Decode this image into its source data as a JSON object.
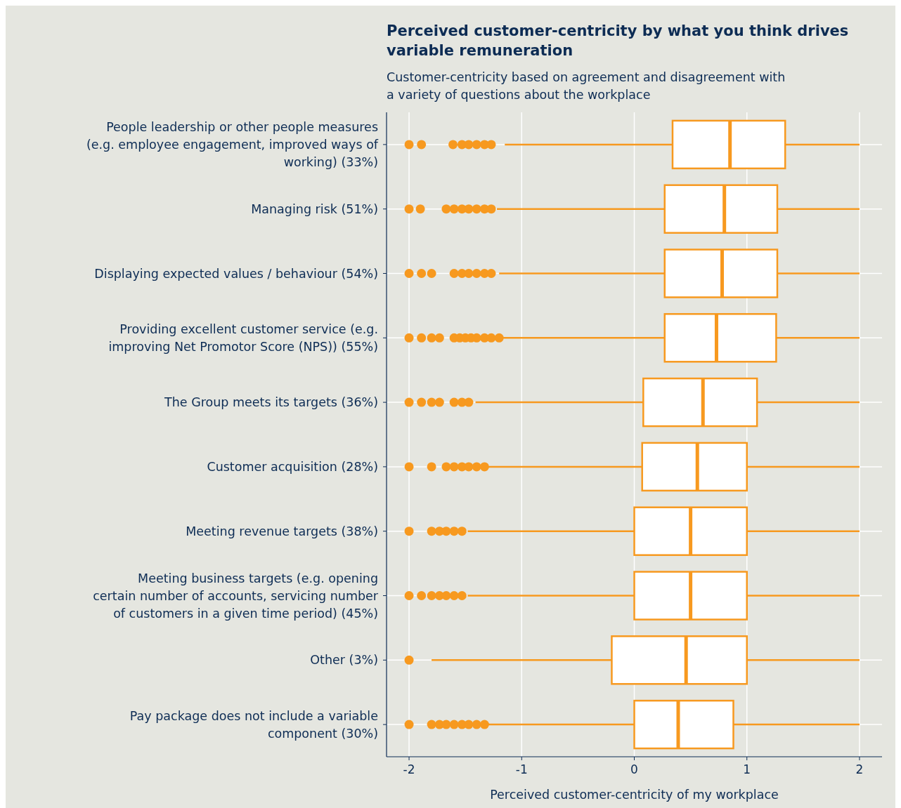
{
  "chart_data": {
    "type": "box",
    "title": "Perceived customer-centricity by what you think drives variable remuneration",
    "subtitle": "Customer-centricity based on agreement and disagreement with a variety of questions about the workplace",
    "xlabel": "Perceived customer-centricity of my workplace",
    "orientation": "horizontal",
    "categories": [
      "People leadership or other people measures (e.g. employee engagement, improved ways of working) (33%)",
      "Managing risk (51%)",
      "Displaying expected values / behaviour (54%)",
      "Providing excellent customer service (e.g. improving Net Promotor Score (NPS)) (55%)",
      "The Group meets its targets (36%)",
      "Customer acquisition (28%)",
      "Meeting revenue targets (38%)",
      "Meeting business targets (e.g. opening certain number of accounts, servicing number of customers in a given time period) (45%)",
      "Other (3%)",
      "Pay package does not include a variable component (30%)"
    ],
    "color": "#f7991f",
    "xlim": [
      -2.2,
      2.2
    ],
    "xticks": [
      -2,
      -1,
      0,
      1,
      2
    ],
    "grid": true,
    "boxes": [
      {
        "low": -1.15,
        "q1": 0.34,
        "median": 0.85,
        "q3": 1.34,
        "high": 2,
        "outliers": [
          -2,
          -1.89,
          -1.61,
          -1.53,
          -1.47,
          -1.4,
          -1.33,
          -1.27
        ]
      },
      {
        "low": -1.22,
        "q1": 0.27,
        "median": 0.8,
        "q3": 1.27,
        "high": 2,
        "outliers": [
          -2,
          -1.9,
          -1.67,
          -1.6,
          -1.53,
          -1.47,
          -1.4,
          -1.33,
          -1.27
        ]
      },
      {
        "low": -1.2,
        "q1": 0.27,
        "median": 0.78,
        "q3": 1.27,
        "high": 2,
        "outliers": [
          -2,
          -1.89,
          -1.8,
          -1.6,
          -1.53,
          -1.47,
          -1.4,
          -1.33,
          -1.27
        ]
      },
      {
        "low": -1.2,
        "q1": 0.27,
        "median": 0.73,
        "q3": 1.26,
        "high": 2,
        "outliers": [
          -2,
          -1.89,
          -1.8,
          -1.73,
          -1.6,
          -1.55,
          -1.5,
          -1.45,
          -1.4,
          -1.33,
          -1.27,
          -1.2
        ]
      },
      {
        "low": -1.41,
        "q1": 0.08,
        "median": 0.61,
        "q3": 1.09,
        "high": 2,
        "outliers": [
          -2,
          -1.89,
          -1.8,
          -1.73,
          -1.6,
          -1.53,
          -1.47
        ]
      },
      {
        "low": -1.31,
        "q1": 0.07,
        "median": 0.56,
        "q3": 1,
        "high": 2,
        "outliers": [
          -2,
          -1.8,
          -1.67,
          -1.6,
          -1.53,
          -1.47,
          -1.4,
          -1.33
        ]
      },
      {
        "low": -1.48,
        "q1": 0,
        "median": 0.5,
        "q3": 1,
        "high": 2,
        "outliers": [
          -2,
          -1.8,
          -1.73,
          -1.67,
          -1.6,
          -1.53
        ]
      },
      {
        "low": -1.48,
        "q1": 0,
        "median": 0.5,
        "q3": 1,
        "high": 2,
        "outliers": [
          -2,
          -1.89,
          -1.8,
          -1.73,
          -1.67,
          -1.6,
          -1.53
        ]
      },
      {
        "low": -1.8,
        "q1": -0.2,
        "median": 0.46,
        "q3": 1,
        "high": 2,
        "outliers": [
          -2
        ]
      },
      {
        "low": -1.31,
        "q1": 0,
        "median": 0.39,
        "q3": 0.88,
        "high": 2,
        "outliers": [
          -2,
          -1.8,
          -1.73,
          -1.67,
          -1.6,
          -1.53,
          -1.47,
          -1.4,
          -1.33
        ]
      }
    ]
  }
}
